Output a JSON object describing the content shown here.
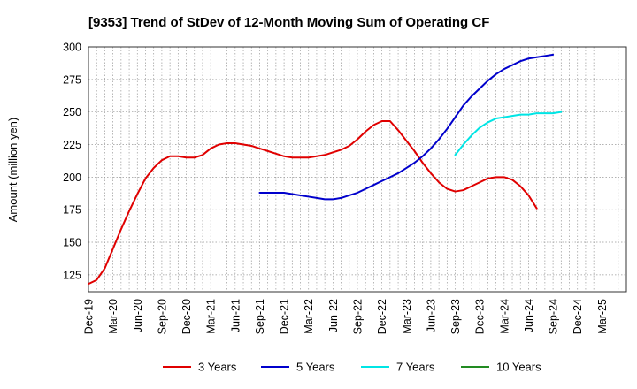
{
  "chart_data": {
    "type": "line",
    "title": "[9353]  Trend of StDev of 12-Month Moving Sum of Operating CF",
    "xlabel": "",
    "ylabel": "Amount (million yen)",
    "ylim": [
      112,
      300
    ],
    "yticks": [
      125,
      150,
      175,
      200,
      225,
      250,
      275,
      300
    ],
    "x_months_index_range": [
      0,
      66
    ],
    "x_tick_labels": [
      "Dec-19",
      "Mar-20",
      "Jun-20",
      "Sep-20",
      "Dec-20",
      "Mar-21",
      "Jun-21",
      "Sep-21",
      "Dec-21",
      "Mar-22",
      "Jun-22",
      "Sep-22",
      "Dec-22",
      "Mar-23",
      "Jun-23",
      "Sep-23",
      "Dec-23",
      "Mar-24",
      "Jun-24",
      "Sep-24",
      "Dec-24",
      "Mar-25"
    ],
    "grid": true,
    "legend_position": "bottom",
    "series": [
      {
        "name": "3 Years",
        "color": "#e00000",
        "start_index": 0,
        "values": [
          118,
          121,
          130,
          145,
          160,
          174,
          187,
          199,
          207,
          213,
          216,
          216,
          215,
          215,
          217,
          222,
          225,
          226,
          226,
          225,
          224,
          222,
          220,
          218,
          216,
          215,
          215,
          215,
          216,
          217,
          219,
          221,
          224,
          229,
          235,
          240,
          243,
          243,
          236,
          228,
          220,
          211,
          203,
          196,
          191,
          189,
          190,
          193,
          196,
          199,
          200,
          200,
          198,
          193,
          186,
          176
        ]
      },
      {
        "name": "5 Years",
        "color": "#0000cc",
        "start_index": 21,
        "values": [
          188,
          188,
          188,
          188,
          187,
          186,
          185,
          184,
          183,
          183,
          184,
          186,
          188,
          191,
          194,
          197,
          200,
          203,
          207,
          211,
          216,
          222,
          229,
          237,
          246,
          255,
          262,
          268,
          274,
          279,
          283,
          286,
          289,
          291,
          292,
          293,
          294
        ]
      },
      {
        "name": "7 Years",
        "color": "#00e5e5",
        "start_index": 45,
        "values": [
          217,
          225,
          232,
          238,
          242,
          245,
          246,
          247,
          248,
          248,
          249,
          249,
          249,
          250
        ]
      },
      {
        "name": "10 Years",
        "color": "#228b22",
        "start_index": 0,
        "values": []
      }
    ]
  }
}
